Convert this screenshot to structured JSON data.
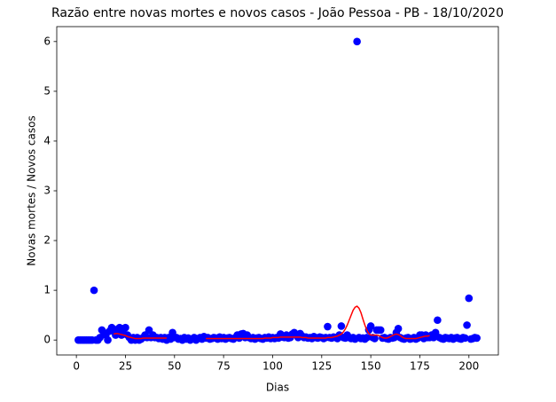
{
  "chart_data": {
    "type": "scatter",
    "title": "Razão entre novas mortes e novos casos - João Pessoa - PB - 18/10/2020",
    "x_label": "Dias",
    "y_label": "Novas mortes / Novos casos",
    "xlim": [
      -10,
      215
    ],
    "ylim": [
      -0.3,
      6.3
    ],
    "xticks": [
      0,
      25,
      50,
      75,
      100,
      125,
      150,
      175,
      200
    ],
    "yticks": [
      0,
      1,
      2,
      3,
      4,
      5,
      6
    ],
    "grid": false,
    "x": [
      1,
      2,
      3,
      4,
      5,
      6,
      7,
      8,
      9,
      10,
      11,
      12,
      13,
      14,
      15,
      16,
      17,
      18,
      19,
      20,
      21,
      22,
      23,
      24,
      25,
      26,
      27,
      28,
      29,
      30,
      31,
      32,
      33,
      34,
      35,
      36,
      37,
      38,
      39,
      40,
      41,
      42,
      43,
      44,
      45,
      46,
      47,
      48,
      49,
      50,
      51,
      52,
      53,
      54,
      55,
      56,
      57,
      58,
      59,
      60,
      61,
      62,
      63,
      64,
      65,
      66,
      67,
      68,
      69,
      70,
      71,
      72,
      73,
      74,
      75,
      76,
      77,
      78,
      79,
      80,
      81,
      82,
      83,
      84,
      85,
      86,
      87,
      88,
      89,
      90,
      91,
      92,
      93,
      94,
      95,
      96,
      97,
      98,
      99,
      100,
      101,
      102,
      103,
      104,
      105,
      106,
      107,
      108,
      109,
      110,
      111,
      112,
      113,
      114,
      115,
      116,
      117,
      118,
      119,
      120,
      121,
      122,
      123,
      124,
      125,
      126,
      127,
      128,
      129,
      130,
      131,
      132,
      133,
      134,
      135,
      136,
      137,
      138,
      139,
      140,
      141,
      142,
      143,
      144,
      145,
      146,
      147,
      148,
      149,
      150,
      151,
      152,
      153,
      154,
      155,
      156,
      157,
      158,
      159,
      160,
      161,
      162,
      163,
      164,
      165,
      166,
      167,
      168,
      169,
      170,
      171,
      172,
      173,
      174,
      175,
      176,
      177,
      178,
      179,
      180,
      181,
      182,
      183,
      184,
      185,
      186,
      187,
      188,
      189,
      190,
      191,
      192,
      193,
      194,
      195,
      196,
      197,
      198,
      199,
      200,
      201,
      202,
      203,
      204
    ],
    "series": [
      {
        "color": "#0000ff",
        "style": "points",
        "values": [
          0,
          0,
          0,
          0,
          0,
          0,
          0,
          0,
          1,
          0,
          0,
          0.05,
          0.2,
          0.15,
          0.1,
          0,
          0.18,
          0.25,
          0.22,
          0.1,
          0.2,
          0.25,
          0.1,
          0.22,
          0.25,
          0.1,
          0.05,
          0,
          0.05,
          0,
          0.05,
          0,
          0.02,
          0.05,
          0.1,
          0.05,
          0.2,
          0.05,
          0.1,
          0.05,
          0.05,
          0.03,
          0.05,
          0.02,
          0.05,
          0,
          0.05,
          0.02,
          0.15,
          0.05,
          0.05,
          0.02,
          0.03,
          0,
          0.05,
          0.02,
          0.04,
          0,
          0.02,
          0.05,
          0,
          0.03,
          0.05,
          0.02,
          0.07,
          0.04,
          0.05,
          0.02,
          0.03,
          0.05,
          0.04,
          0.02,
          0.06,
          0.03,
          0.05,
          0.02,
          0.04,
          0.05,
          0.03,
          0.02,
          0.05,
          0.1,
          0.04,
          0.12,
          0.13,
          0.05,
          0.1,
          0.05,
          0.03,
          0.05,
          0.02,
          0.04,
          0.05,
          0.03,
          0.02,
          0.05,
          0.04,
          0.06,
          0.03,
          0.05,
          0.03,
          0.05,
          0.04,
          0.12,
          0.06,
          0.05,
          0.1,
          0.04,
          0.05,
          0.12,
          0.15,
          0.1,
          0.05,
          0.13,
          0.08,
          0.05,
          0.06,
          0.04,
          0.05,
          0.03,
          0.07,
          0.05,
          0.04,
          0.06,
          0.05,
          0.03,
          0.05,
          0.27,
          0.05,
          0.04,
          0.06,
          0.05,
          0.03,
          0.1,
          0.28,
          0.05,
          0.04,
          0.1,
          0.05,
          0.03,
          0.05,
          0.02,
          6,
          0.05,
          0.03,
          0.04,
          0.02,
          0.05,
          0.2,
          0.28,
          0.05,
          0.03,
          0.2,
          0.2,
          0.2,
          0.04,
          0.05,
          0.03,
          0.02,
          0.05,
          0.04,
          0.05,
          0.15,
          0.23,
          0.05,
          0.03,
          0.02,
          0.04,
          0.05,
          0.02,
          0.03,
          0.05,
          0.02,
          0.04,
          0.1,
          0.1,
          0.03,
          0.1,
          0.05,
          0.05,
          0.1,
          0.05,
          0.15,
          0.4,
          0.05,
          0.03,
          0.02,
          0.05,
          0.04,
          0.03,
          0.05,
          0.02,
          0.04,
          0.05,
          0.03,
          0.02,
          0.05,
          0.04,
          0.3,
          0.84,
          0.02,
          0.03,
          0.05,
          0.04
        ]
      },
      {
        "color": "#ff0000",
        "style": "line",
        "values": [
          null,
          null,
          null,
          null,
          null,
          null,
          null,
          null,
          null,
          null,
          null,
          null,
          null,
          null,
          null,
          null,
          null,
          null,
          0.12,
          0.13,
          0.13,
          0.12,
          0.11,
          0.1,
          0.09,
          0.07,
          0.06,
          0.05,
          0.04,
          0.03,
          0.03,
          0.03,
          0.03,
          0.04,
          0.04,
          0.04,
          0.04,
          0.04,
          0.04,
          0.04,
          0.04,
          0.04,
          0.04,
          0.04,
          0.04,
          0.04,
          null,
          null,
          null,
          null,
          null,
          null,
          null,
          null,
          null,
          null,
          null,
          null,
          null,
          null,
          null,
          null,
          null,
          null,
          null,
          0.03,
          0.03,
          0.03,
          0.03,
          0.03,
          0.03,
          0.03,
          0.03,
          0.03,
          0.03,
          0.03,
          0.03,
          0.03,
          0.03,
          0.03,
          0.03,
          0.03,
          0.03,
          0.03,
          0.03,
          0.03,
          0.03,
          0.03,
          0.03,
          0.03,
          0.03,
          0.03,
          0.03,
          0.03,
          0.03,
          0.04,
          0.04,
          0.04,
          0.04,
          0.05,
          0.05,
          0.05,
          0.05,
          0.06,
          0.06,
          0.06,
          0.06,
          0.06,
          0.06,
          0.06,
          0.06,
          0.06,
          0.06,
          0.06,
          0.05,
          0.05,
          0.05,
          0.04,
          0.04,
          0.04,
          0.04,
          0.04,
          0.04,
          0.04,
          0.04,
          0.04,
          0.04,
          0.05,
          0.05,
          0.05,
          0.06,
          0.07,
          0.08,
          0.1,
          0.12,
          0.16,
          0.22,
          0.3,
          0.4,
          0.5,
          0.6,
          0.66,
          0.68,
          0.64,
          0.55,
          0.42,
          0.3,
          0.2,
          0.13,
          0.1,
          0.1,
          0.1,
          0.1,
          0.09,
          0.07,
          0.05,
          0.04,
          0.04,
          0.05,
          0.07,
          0.09,
          0.11,
          0.12,
          0.11,
          0.09,
          0.06,
          0.04,
          0.03,
          0.03,
          0.03,
          0.03,
          0.03,
          0.03,
          0.04,
          0.05,
          0.06,
          0.07,
          0.08,
          0.08,
          0.09,
          null,
          null,
          null,
          null,
          null,
          null,
          null,
          null,
          null,
          null,
          null,
          null,
          null,
          null,
          null,
          null,
          null,
          null,
          null,
          null,
          null,
          null,
          null,
          null
        ]
      }
    ]
  }
}
